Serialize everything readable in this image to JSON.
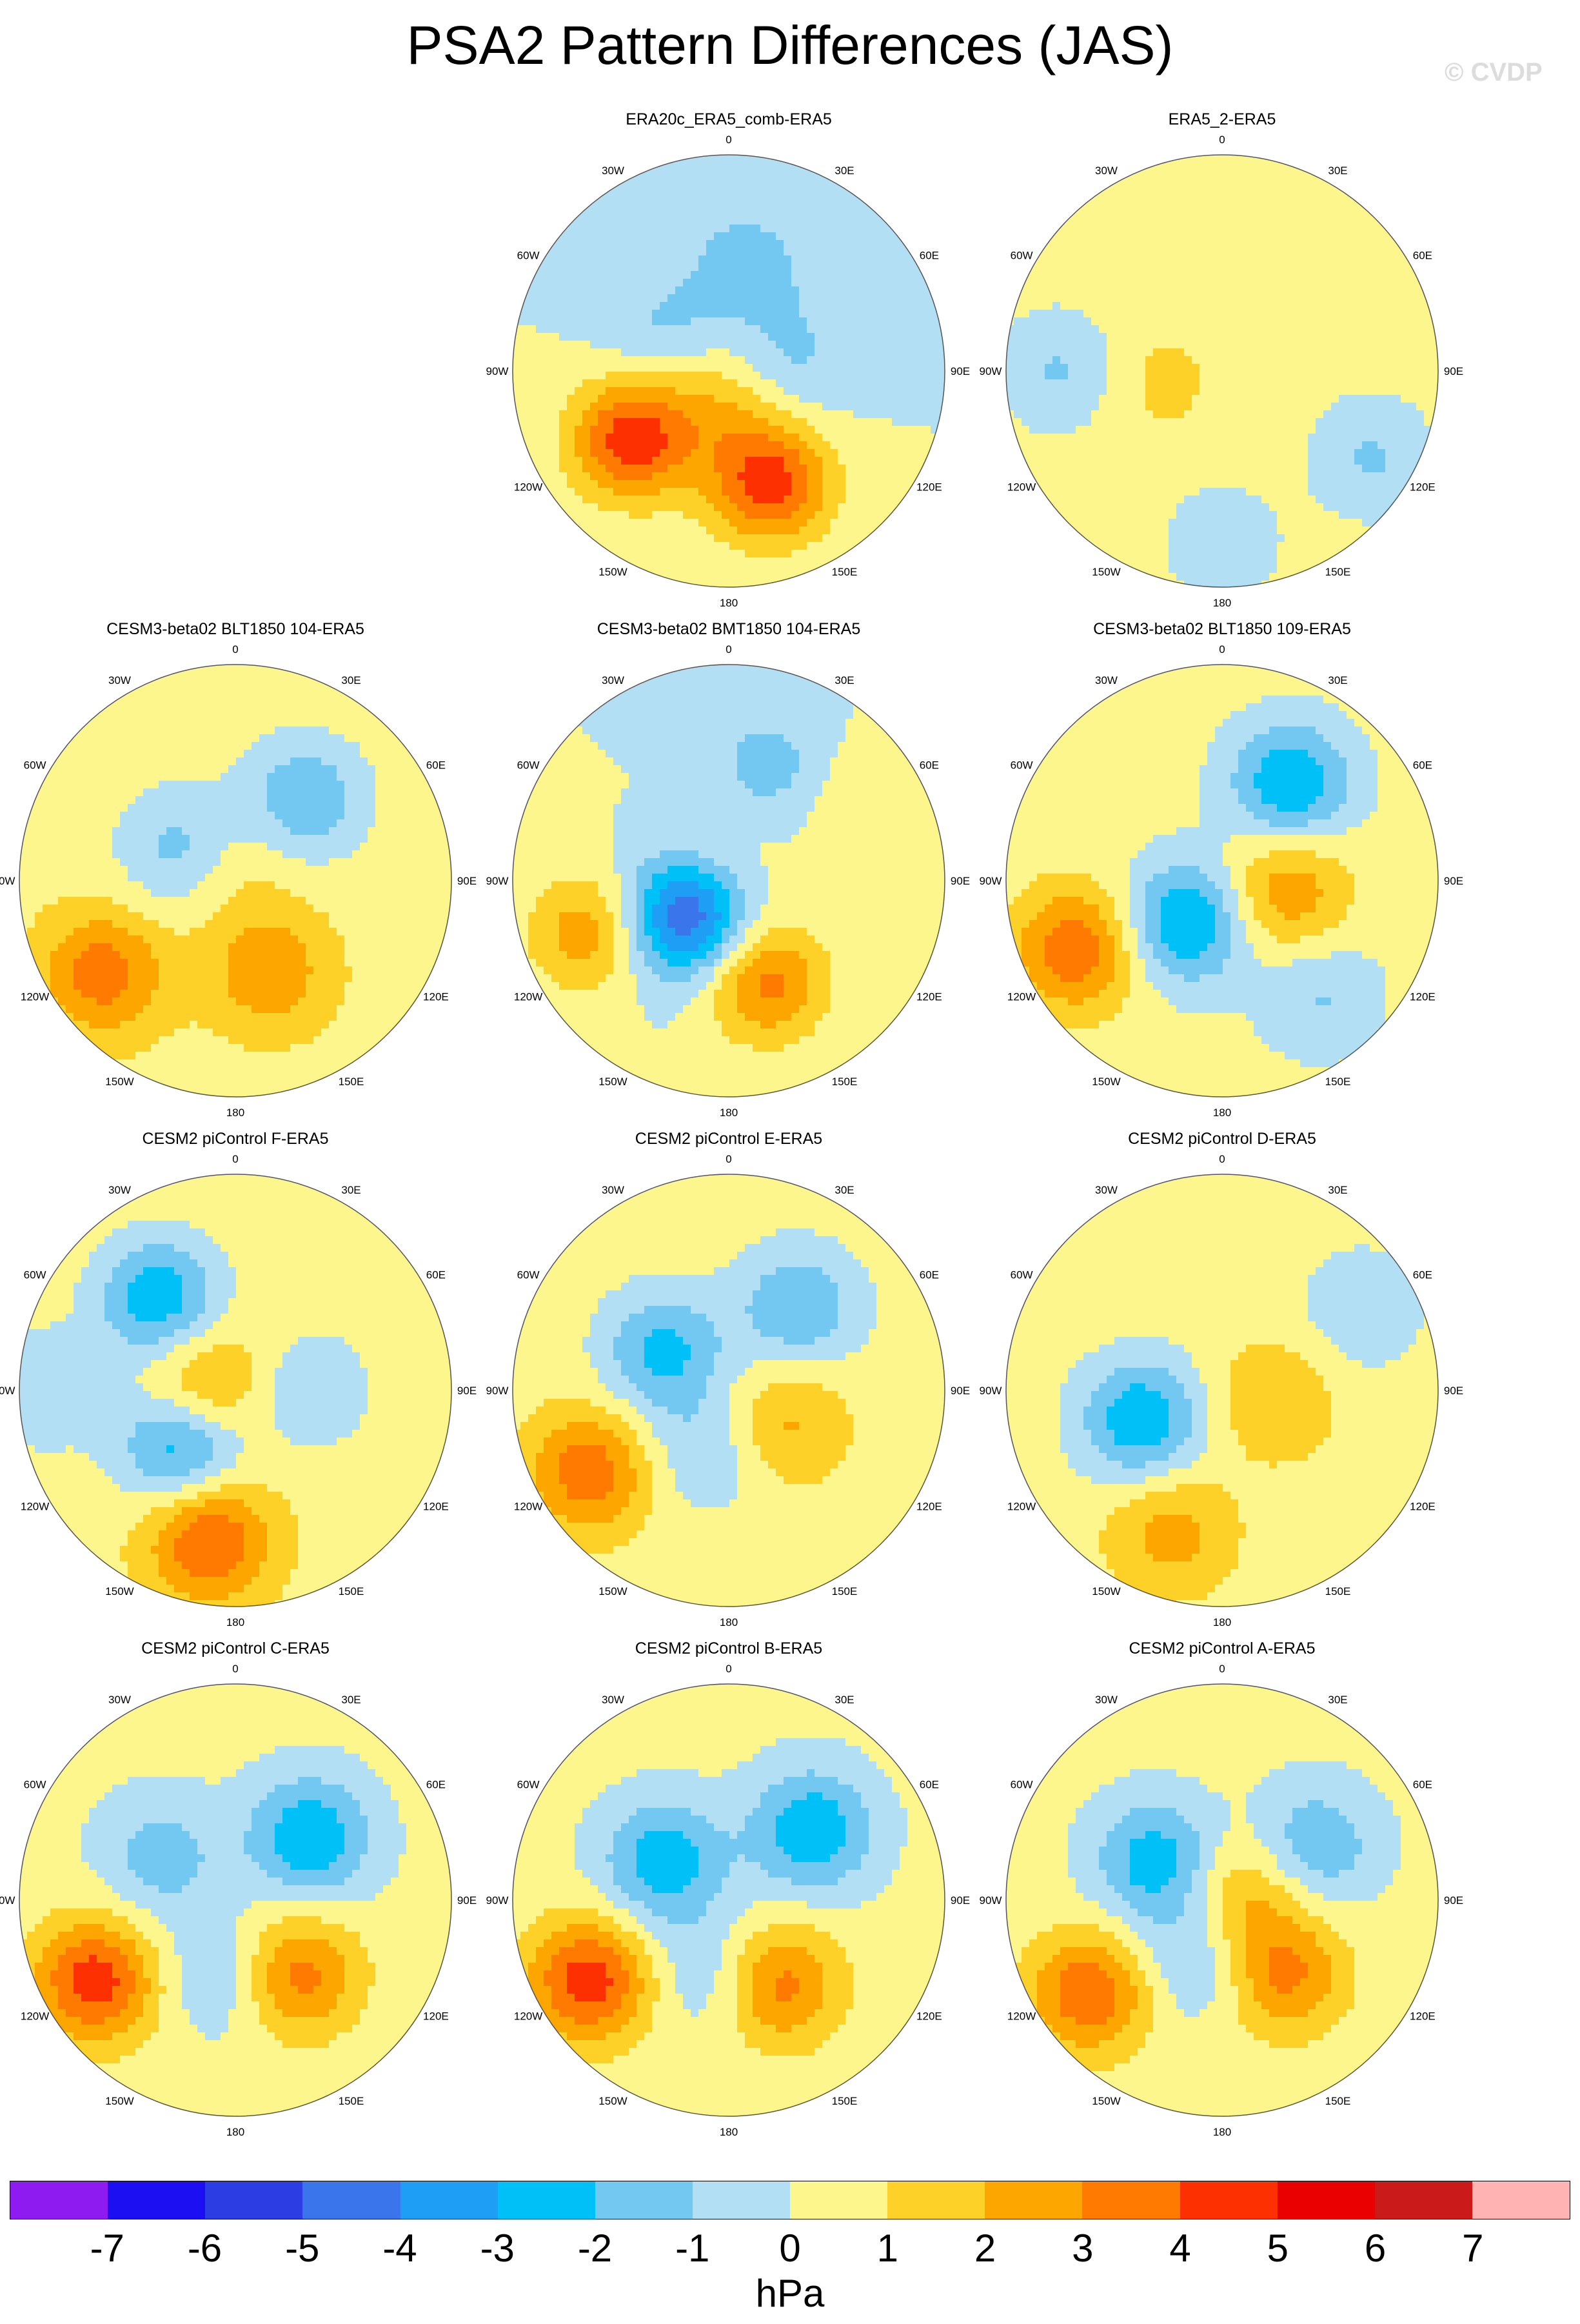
{
  "title": "PSA2 Pattern Differences (JAS)",
  "watermark": "© CVDP",
  "longitude_labels": [
    "0",
    "30E",
    "60E",
    "90E",
    "120E",
    "150E",
    "180",
    "150W",
    "120W",
    "90W",
    "60W",
    "30W"
  ],
  "panels": [
    {
      "title": "ERA20c_ERA5_comb-ERA5",
      "field": {
        "base": 0,
        "features": [
          {
            "lon": 235,
            "colat": 0.55,
            "amp": 4.6
          },
          {
            "lon": 160,
            "colat": 0.55,
            "amp": 4.5
          },
          {
            "lon": 200,
            "colat": 0.15,
            "amp": 1.6
          },
          {
            "lon": 10,
            "colat": 0.5,
            "amp": -1.5
          },
          {
            "lon": 80,
            "colat": 0.3,
            "amp": -1.2
          },
          {
            "lon": 300,
            "colat": 0.35,
            "amp": -1.2
          }
        ]
      }
    },
    {
      "title": "ERA5_2-ERA5",
      "field": {
        "base": 0.5,
        "features": [
          {
            "lon": 270,
            "colat": 0.75,
            "amp": -1.6
          },
          {
            "lon": 120,
            "colat": 0.8,
            "amp": -1.6
          },
          {
            "lon": 180,
            "colat": 0.8,
            "amp": -1.2
          },
          {
            "lon": 260,
            "colat": 0.3,
            "amp": 0.8
          }
        ]
      }
    },
    {
      "title": "CESM3-beta02 BLT1850 104-ERA5",
      "field": {
        "base": 0.6,
        "features": [
          {
            "lon": 235,
            "colat": 0.75,
            "amp": 3.0
          },
          {
            "lon": 160,
            "colat": 0.45,
            "amp": 2.2
          },
          {
            "lon": 300,
            "colat": 0.3,
            "amp": -2.0
          },
          {
            "lon": 40,
            "colat": 0.5,
            "amp": -2.5
          },
          {
            "lon": 0,
            "colat": 0.05,
            "amp": 0.8
          }
        ]
      }
    },
    {
      "title": "CESM3-beta02 BMT1850 104-ERA5",
      "field": {
        "base": 0,
        "features": [
          {
            "lon": 250,
            "colat": 0.7,
            "amp": 2.6
          },
          {
            "lon": 160,
            "colat": 0.5,
            "amp": 3.4
          },
          {
            "lon": 230,
            "colat": 0.25,
            "amp": -5.2
          },
          {
            "lon": 20,
            "colat": 0.55,
            "amp": -1.5
          },
          {
            "lon": 60,
            "colat": 0.7,
            "amp": 1.0
          },
          {
            "lon": 330,
            "colat": 0.1,
            "amp": 1.0
          }
        ]
      }
    },
    {
      "title": "CESM3-beta02 BLT1850 109-ERA5",
      "field": {
        "base": 0.4,
        "features": [
          {
            "lon": 245,
            "colat": 0.75,
            "amp": 3.4
          },
          {
            "lon": 100,
            "colat": 0.3,
            "amp": 2.5
          },
          {
            "lon": 35,
            "colat": 0.55,
            "amp": -3.4
          },
          {
            "lon": 220,
            "colat": 0.25,
            "amp": -3.6
          },
          {
            "lon": 140,
            "colat": 0.7,
            "amp": -1.5
          }
        ]
      }
    },
    {
      "title": "CESM2 piControl F-ERA5",
      "field": {
        "base": 0.6,
        "features": [
          {
            "lon": 190,
            "colat": 0.7,
            "amp": 3.6
          },
          {
            "lon": 320,
            "colat": 0.55,
            "amp": -3.4
          },
          {
            "lon": 225,
            "colat": 0.35,
            "amp": -3.8
          },
          {
            "lon": 270,
            "colat": 0.15,
            "amp": 2.6
          },
          {
            "lon": 90,
            "colat": 0.35,
            "amp": -1.5
          },
          {
            "lon": 270,
            "colat": 0.9,
            "amp": -1.5
          }
        ]
      }
    },
    {
      "title": "CESM2 piControl E-ERA5",
      "field": {
        "base": 0.5,
        "features": [
          {
            "lon": 240,
            "colat": 0.75,
            "amp": 3.2
          },
          {
            "lon": 120,
            "colat": 0.3,
            "amp": 1.8
          },
          {
            "lon": 40,
            "colat": 0.5,
            "amp": -2.5
          },
          {
            "lon": 300,
            "colat": 0.35,
            "amp": -2.8
          },
          {
            "lon": 200,
            "colat": 0.3,
            "amp": -1.5
          }
        ]
      }
    },
    {
      "title": "CESM2 piControl D-ERA5",
      "field": {
        "base": 0.5,
        "features": [
          {
            "lon": 200,
            "colat": 0.7,
            "amp": 2.0
          },
          {
            "lon": 250,
            "colat": 0.4,
            "amp": -3.4
          },
          {
            "lon": 60,
            "colat": 0.75,
            "amp": -1.4
          },
          {
            "lon": 100,
            "colat": 0.25,
            "amp": 1.5
          }
        ]
      }
    },
    {
      "title": "CESM2 piControl C-ERA5",
      "field": {
        "base": 0.3,
        "features": [
          {
            "lon": 240,
            "colat": 0.75,
            "amp": 4.3
          },
          {
            "lon": 140,
            "colat": 0.45,
            "amp": 3.2
          },
          {
            "lon": 50,
            "colat": 0.45,
            "amp": -3.2
          },
          {
            "lon": 300,
            "colat": 0.4,
            "amp": -1.8
          },
          {
            "lon": 190,
            "colat": 0.35,
            "amp": -1.5
          }
        ]
      }
    },
    {
      "title": "CESM2 piControl B-ERA5",
      "field": {
        "base": 0.3,
        "features": [
          {
            "lon": 240,
            "colat": 0.75,
            "amp": 4.3
          },
          {
            "lon": 150,
            "colat": 0.45,
            "amp": 3.3
          },
          {
            "lon": 50,
            "colat": 0.5,
            "amp": -3.2
          },
          {
            "lon": 300,
            "colat": 0.35,
            "amp": -3.0
          },
          {
            "lon": 190,
            "colat": 0.35,
            "amp": -1.5
          }
        ]
      }
    },
    {
      "title": "CESM2 piControl A-ERA5",
      "field": {
        "base": 0.3,
        "features": [
          {
            "lon": 235,
            "colat": 0.75,
            "amp": 3.6
          },
          {
            "lon": 140,
            "colat": 0.45,
            "amp": 3.0
          },
          {
            "lon": 60,
            "colat": 0.5,
            "amp": -2.2
          },
          {
            "lon": 300,
            "colat": 0.35,
            "amp": -3.0
          },
          {
            "lon": 200,
            "colat": 0.3,
            "amp": -1.6
          },
          {
            "lon": 80,
            "colat": 0.1,
            "amp": 2.0
          }
        ]
      }
    }
  ],
  "colorbar": {
    "unit": "hPa",
    "ticks": [
      "-7",
      "-6",
      "-5",
      "-4",
      "-3",
      "-2",
      "-1",
      "0",
      "1",
      "2",
      "3",
      "4",
      "5",
      "6",
      "7"
    ],
    "colors": [
      "#8e1cf0",
      "#1c0ff2",
      "#2b3de3",
      "#3a75ec",
      "#1e9ef5",
      "#00c0f8",
      "#72c8f1",
      "#b3dff4",
      "#fdf68c",
      "#fed128",
      "#fda600",
      "#fe7a00",
      "#fc3000",
      "#eb0000",
      "#cb1a1a",
      "#ffb3b3"
    ]
  }
}
